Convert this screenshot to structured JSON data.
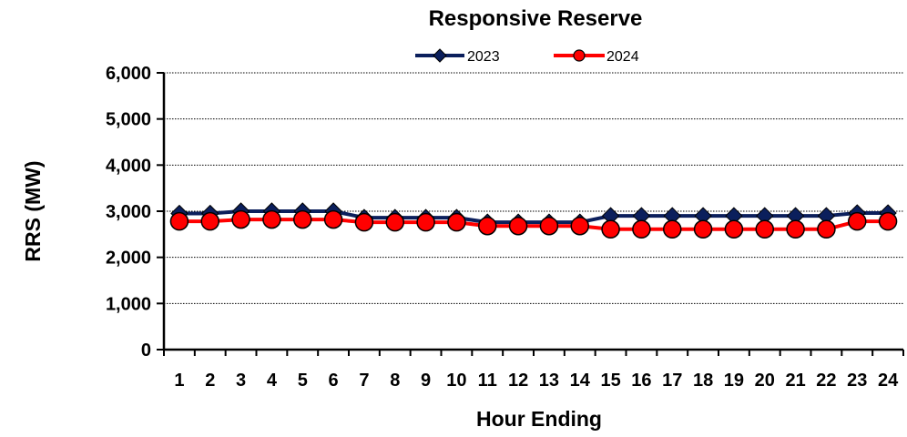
{
  "chart_data": {
    "type": "line",
    "title": "Responsive Reserve",
    "xlabel": "Hour Ending",
    "ylabel": "RRS (MW)",
    "ylim": [
      0,
      6000
    ],
    "yticks": [
      0,
      1000,
      2000,
      3000,
      4000,
      5000,
      6000
    ],
    "ytick_labels": [
      "0",
      "1,000",
      "2,000",
      "3,000",
      "4,000",
      "5,000",
      "6,000"
    ],
    "categories": [
      "1",
      "2",
      "3",
      "4",
      "5",
      "6",
      "7",
      "8",
      "9",
      "10",
      "11",
      "12",
      "13",
      "14",
      "15",
      "16",
      "17",
      "18",
      "19",
      "20",
      "21",
      "22",
      "23",
      "24"
    ],
    "grid": "horizontal dotted",
    "legend_position": "top-center",
    "series": [
      {
        "name": "2023",
        "color": "#0b1f5c",
        "marker": "diamond",
        "values": [
          2950,
          2950,
          3000,
          3000,
          3000,
          3000,
          2860,
          2860,
          2860,
          2860,
          2760,
          2760,
          2760,
          2760,
          2900,
          2900,
          2900,
          2900,
          2900,
          2900,
          2900,
          2900,
          2960,
          2960
        ]
      },
      {
        "name": "2024",
        "color": "#ff0000",
        "marker": "circle",
        "values": [
          2780,
          2780,
          2820,
          2820,
          2820,
          2820,
          2760,
          2760,
          2760,
          2760,
          2680,
          2680,
          2680,
          2680,
          2610,
          2610,
          2610,
          2610,
          2610,
          2610,
          2610,
          2610,
          2780,
          2780
        ]
      }
    ]
  }
}
